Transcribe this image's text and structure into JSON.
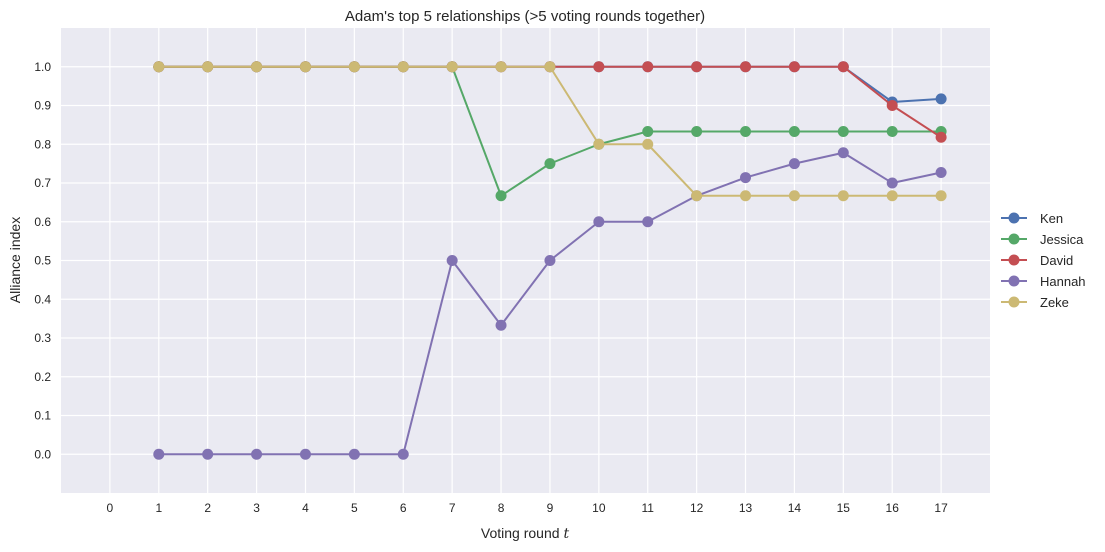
{
  "chart_data": {
    "type": "line",
    "title": "Adam's top 5 relationships (>5 voting rounds together)",
    "xlabel": "Voting round",
    "xlabel_var": "t",
    "ylabel": "Alliance index",
    "xlim": [
      -1,
      18
    ],
    "ylim": [
      -0.1,
      1.1
    ],
    "xticks": [
      0,
      1,
      2,
      3,
      4,
      5,
      6,
      7,
      8,
      9,
      10,
      11,
      12,
      13,
      14,
      15,
      16,
      17
    ],
    "yticks": [
      "0.0",
      "0.1",
      "0.2",
      "0.3",
      "0.4",
      "0.5",
      "0.6",
      "0.7",
      "0.8",
      "0.9",
      "1.0"
    ],
    "grid": true,
    "legend_position": "right",
    "x": [
      1,
      2,
      3,
      4,
      5,
      6,
      7,
      8,
      9,
      10,
      11,
      12,
      13,
      14,
      15,
      16,
      17
    ],
    "series": [
      {
        "name": "Ken",
        "color": "#4c72b0",
        "values": [
          1,
          1,
          1,
          1,
          1,
          1,
          1,
          1,
          1,
          1,
          1,
          1,
          1,
          1,
          1,
          0.909,
          0.917
        ]
      },
      {
        "name": "Jessica",
        "color": "#55a868",
        "values": [
          1,
          1,
          1,
          1,
          1,
          1,
          1,
          0.667,
          0.75,
          0.8,
          0.833,
          0.833,
          0.833,
          0.833,
          0.833,
          0.833,
          0.833
        ]
      },
      {
        "name": "David",
        "color": "#c44e52",
        "values": [
          1,
          1,
          1,
          1,
          1,
          1,
          1,
          1,
          1,
          1,
          1,
          1,
          1,
          1,
          1,
          0.9,
          0.818
        ]
      },
      {
        "name": "Hannah",
        "color": "#8172b2",
        "values": [
          0,
          0,
          0,
          0,
          0,
          0,
          0.5,
          0.333,
          0.5,
          0.6,
          0.6,
          0.667,
          0.714,
          0.75,
          0.778,
          0.7,
          0.727
        ]
      },
      {
        "name": "Zeke",
        "color": "#ccb974",
        "values": [
          1,
          1,
          1,
          1,
          1,
          1,
          1,
          1,
          1,
          0.8,
          0.8,
          0.667,
          0.667,
          0.667,
          0.667,
          0.667,
          0.667
        ]
      }
    ]
  }
}
